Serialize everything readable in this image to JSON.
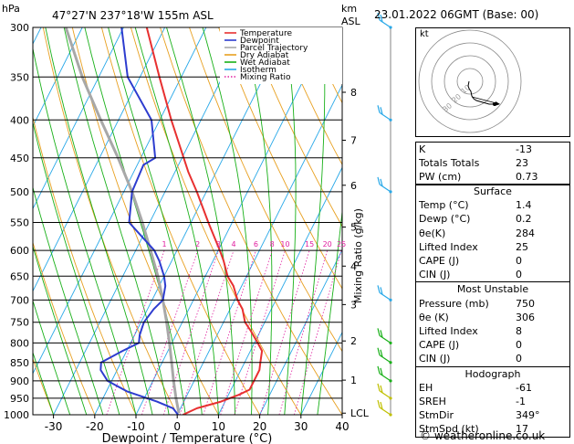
{
  "header": {
    "unit_hpa": "hPa",
    "location": "47°27'N  237°18'W  155m  ASL",
    "unit_km": "km",
    "unit_asl": "ASL",
    "date": "23.01.2022  06GMT  (Base: 00)"
  },
  "legend": [
    {
      "label": "Temperature",
      "color": "#e83030",
      "style": "solid"
    },
    {
      "label": "Dewpoint",
      "color": "#2d3ccf",
      "style": "solid"
    },
    {
      "label": "Parcel Trajectory",
      "color": "#a8a8a8",
      "style": "solid"
    },
    {
      "label": "Dry Adiabat",
      "color": "#e8a020",
      "style": "solid"
    },
    {
      "label": "Wet Adiabat",
      "color": "#18b018",
      "style": "solid"
    },
    {
      "label": "Isotherm",
      "color": "#28a8e8",
      "style": "solid"
    },
    {
      "label": "Mixing Ratio",
      "color": "#e020a0",
      "style": "dotted"
    }
  ],
  "chart_data": {
    "type": "line",
    "xlabel": "Dewpoint / Temperature (°C)",
    "ylabel": "hPa",
    "y2label": "Mixing Ratio (g/kg)",
    "xlim": [
      -35,
      40
    ],
    "ylim": [
      1000,
      300
    ],
    "y_scale": "log",
    "x_ticks": [
      "-30",
      "-20",
      "-10",
      "0",
      "10",
      "20",
      "30",
      "40"
    ],
    "pressure_ticks": [
      "300",
      "350",
      "400",
      "450",
      "500",
      "550",
      "600",
      "650",
      "700",
      "750",
      "800",
      "850",
      "900",
      "950",
      "1000"
    ],
    "km_ticks": [
      {
        "label": "8",
        "p": 367
      },
      {
        "label": "7",
        "p": 426
      },
      {
        "label": "6",
        "p": 490
      },
      {
        "label": "5",
        "p": 558
      },
      {
        "label": "4",
        "p": 630
      },
      {
        "label": "3",
        "p": 710
      },
      {
        "label": "2",
        "p": 795
      },
      {
        "label": "1",
        "p": 898
      },
      {
        "label": "LCL",
        "p": 995
      }
    ],
    "mixing_ratio_labels": [
      "1",
      "2",
      "3",
      "4",
      "6",
      "8",
      "10",
      "15",
      "20",
      "25"
    ],
    "series": [
      {
        "name": "Temperature",
        "color": "#e83030",
        "points": [
          [
            1.4,
            1000
          ],
          [
            4,
            980
          ],
          [
            9,
            960
          ],
          [
            12.5,
            940
          ],
          [
            14.5,
            925
          ],
          [
            14.5,
            900
          ],
          [
            14.5,
            870
          ],
          [
            13.8,
            850
          ],
          [
            12.8,
            820
          ],
          [
            10.8,
            800
          ],
          [
            7.6,
            770
          ],
          [
            5.2,
            750
          ],
          [
            3,
            720
          ],
          [
            0.7,
            700
          ],
          [
            -2,
            670
          ],
          [
            -4.6,
            650
          ],
          [
            -7.4,
            620
          ],
          [
            -9.6,
            600
          ],
          [
            -15.8,
            550
          ],
          [
            -22.3,
            500
          ],
          [
            -26.8,
            470
          ],
          [
            -29.6,
            450
          ],
          [
            -37.2,
            400
          ],
          [
            -45.3,
            350
          ],
          [
            -54.4,
            300
          ]
        ]
      },
      {
        "name": "Dewpoint",
        "color": "#2d3ccf",
        "points": [
          [
            0.2,
            1000
          ],
          [
            -1.8,
            980
          ],
          [
            -6.5,
            960
          ],
          [
            -15,
            930
          ],
          [
            -21,
            900
          ],
          [
            -24,
            870
          ],
          [
            -24.8,
            850
          ],
          [
            -21,
            820
          ],
          [
            -18,
            800
          ],
          [
            -18.8,
            780
          ],
          [
            -19.3,
            750
          ],
          [
            -18.5,
            720
          ],
          [
            -17.4,
            700
          ],
          [
            -18.5,
            670
          ],
          [
            -20,
            650
          ],
          [
            -23,
            620
          ],
          [
            -25.5,
            600
          ],
          [
            -35,
            550
          ],
          [
            -38,
            500
          ],
          [
            -38.5,
            460
          ],
          [
            -36.5,
            450
          ],
          [
            -42,
            400
          ],
          [
            -53,
            350
          ],
          [
            -60.5,
            300
          ]
        ]
      },
      {
        "name": "Parcel Trajectory",
        "color": "#a8a8a8",
        "points": [
          [
            0.2,
            995
          ],
          [
            -2.3,
            950
          ],
          [
            -5,
            900
          ],
          [
            -7.7,
            850
          ],
          [
            -10.6,
            800
          ],
          [
            -13.8,
            750
          ],
          [
            -17.4,
            700
          ],
          [
            -21.5,
            650
          ],
          [
            -26.4,
            600
          ],
          [
            -31.8,
            550
          ],
          [
            -38,
            500
          ],
          [
            -45.5,
            450
          ],
          [
            -54.3,
            400
          ],
          [
            -64,
            350
          ],
          [
            -74,
            300
          ]
        ]
      }
    ],
    "wind_barbs": [
      {
        "p": 300,
        "color": "#28a8e8"
      },
      {
        "p": 400,
        "color": "#28a8e8"
      },
      {
        "p": 500,
        "color": "#28a8e8"
      },
      {
        "p": 700,
        "color": "#28a8e8"
      },
      {
        "p": 800,
        "color": "#18b018"
      },
      {
        "p": 850,
        "color": "#18b018"
      },
      {
        "p": 900,
        "color": "#18b018"
      },
      {
        "p": 950,
        "color": "#c0c000"
      },
      {
        "p": 1000,
        "color": "#c0c000"
      }
    ]
  },
  "hodograph": {
    "unit": "kt",
    "ring_labels": [
      "10",
      "20",
      "30"
    ]
  },
  "indices": {
    "k": {
      "label": "K",
      "value": "-13"
    },
    "tt": {
      "label": "Totals Totals",
      "value": "23"
    },
    "pw": {
      "label": "PW (cm)",
      "value": "0.73"
    }
  },
  "surface": {
    "title": "Surface",
    "rows": [
      {
        "label": "Temp (°C)",
        "value": "1.4"
      },
      {
        "label": "Dewp (°C)",
        "value": "0.2"
      },
      {
        "label": "θe(K)",
        "value": "284"
      },
      {
        "label": "Lifted Index",
        "value": "25"
      },
      {
        "label": "CAPE (J)",
        "value": "0"
      },
      {
        "label": "CIN (J)",
        "value": "0"
      }
    ]
  },
  "most_unstable": {
    "title": "Most Unstable",
    "rows": [
      {
        "label": "Pressure (mb)",
        "value": "750"
      },
      {
        "label": "θe (K)",
        "value": "306"
      },
      {
        "label": "Lifted Index",
        "value": "8"
      },
      {
        "label": "CAPE (J)",
        "value": "0"
      },
      {
        "label": "CIN (J)",
        "value": "0"
      }
    ]
  },
  "hodo_table": {
    "title": "Hodograph",
    "rows": [
      {
        "label": "EH",
        "value": "-61"
      },
      {
        "label": "SREH",
        "value": "-1"
      },
      {
        "label": "StmDir",
        "value": "349°"
      },
      {
        "label": "StmSpd (kt)",
        "value": "17"
      }
    ]
  },
  "footer": {
    "copyright": "© weatheronline.co.uk"
  }
}
